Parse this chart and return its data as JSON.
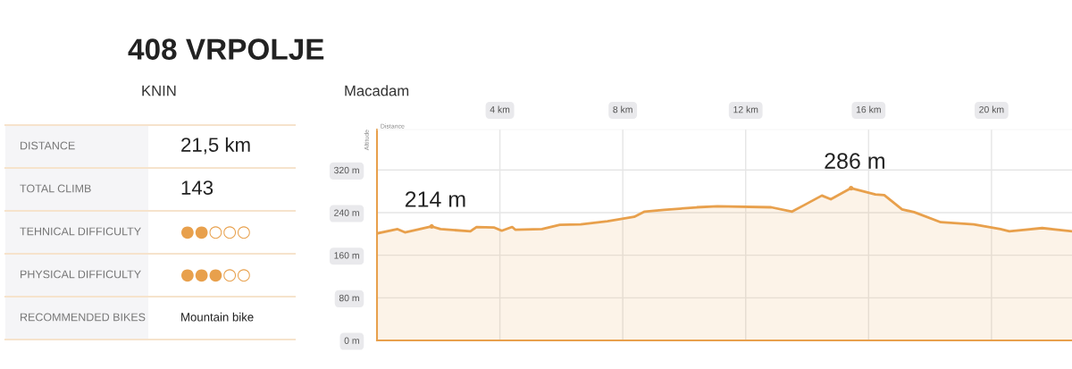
{
  "chart_data": [
    {
      "type": "other",
      "title": "408 VRPOLJE",
      "annotations": [
        "KNIN",
        "Macadam"
      ],
      "categories": [
        "DISTANCE",
        "TOTAL CLIMB",
        "TEHNICAL DIFFICULTY",
        "PHYSICAL DIFFICULTY",
        "RECOMMENDED BIKES"
      ],
      "value_labels": [
        "21,5 km",
        "143",
        "●●○○○",
        "●●●○○",
        "Mountain bike"
      ],
      "color": "#e8a04c"
    },
    {
      "type": "area",
      "xlabel": "Distance",
      "ylabel": "Altitude",
      "series": [
        {
          "color": "#e8a04c",
          "x": [
            0.0,
            0.67,
            0.91,
            1.78,
            2.07,
            3.04,
            3.24,
            3.82,
            4.06,
            4.4,
            4.5,
            5.37,
            5.95,
            6.63,
            7.5,
            8.37,
            8.71,
            9.34,
            10.41,
            11.08,
            12.83,
            13.51,
            13.9,
            14.48,
            14.77,
            15.43,
            16.22,
            16.51,
            17.09,
            17.48,
            18.35,
            19.42,
            20.29,
            20.58,
            21.65,
            22.62
          ],
          "values": [
            201,
            209,
            203,
            214,
            209,
            205,
            213,
            212,
            206,
            213,
            208,
            209,
            217,
            218,
            224,
            232,
            242,
            245,
            250,
            252,
            250,
            242,
            254,
            272,
            265,
            286,
            274,
            273,
            246,
            241,
            222,
            218,
            209,
            205,
            211,
            205
          ]
        }
      ],
      "annotations": [
        {
          "text": "214 m",
          "x": 1.78,
          "y": 214
        },
        {
          "text": "286 m",
          "x": 15.43,
          "y": 286
        }
      ],
      "xlim": [
        0,
        22.62
      ],
      "xticks": [
        {
          "value": 4,
          "label": "4 km"
        },
        {
          "value": 8,
          "label": "8 km"
        },
        {
          "value": 12,
          "label": "12 km"
        },
        {
          "value": 16,
          "label": "16 km"
        },
        {
          "value": 20,
          "label": "20 km"
        }
      ],
      "ylim": [
        0,
        396
      ],
      "yticks": [
        {
          "value": 0,
          "label": "0 m"
        },
        {
          "value": 80,
          "label": "80 m"
        },
        {
          "value": 160,
          "label": "160 m"
        },
        {
          "value": 240,
          "label": "240 m"
        },
        {
          "value": 320,
          "label": "320 m"
        }
      ],
      "grid": true
    }
  ]
}
